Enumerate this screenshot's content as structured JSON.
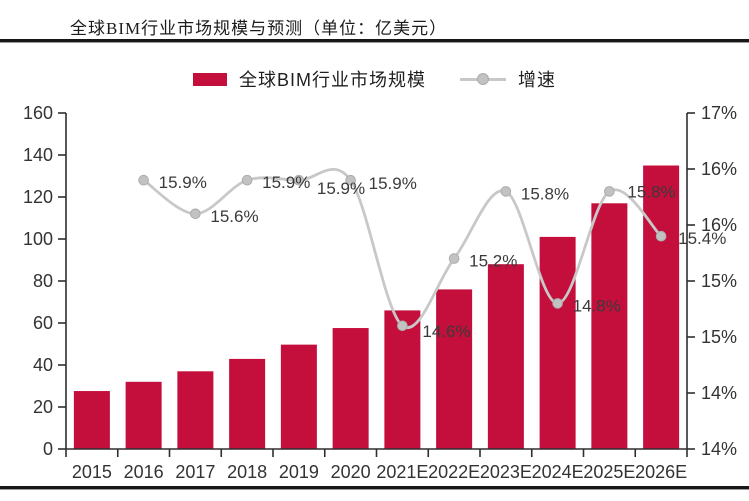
{
  "header": {
    "title": "全球BIM行业市场规模与预测（单位：亿美元）"
  },
  "legend": {
    "bar_label": "全球BIM行业市场规模",
    "line_label": "增速"
  },
  "colors": {
    "bar": "#C40F3C",
    "line": "#C8C8C8",
    "marker_fill": "#C2C2C2",
    "marker_edge": "#ACACAC",
    "axis": "#2f2f2f",
    "tick_text": "#333333",
    "data_label_text": "#3a3a3a",
    "rule": "#171717"
  },
  "chart_data": {
    "type": "combo-bar-line",
    "title": "全球BIM行业市场规模与预测（单位：亿美元）",
    "unit": "亿美元",
    "categories": [
      "2015",
      "2016",
      "2017",
      "2018",
      "2019",
      "2020",
      "2021E",
      "2022E",
      "2023E",
      "2024E",
      "2025E",
      "2026E"
    ],
    "series": [
      {
        "name": "全球BIM行业市场规模",
        "type": "bar",
        "axis": "left",
        "values": [
          27.6,
          32,
          37,
          42.9,
          49.7,
          57.6,
          66,
          76,
          88,
          101,
          117,
          135
        ]
      },
      {
        "name": "增速",
        "type": "line",
        "axis": "right",
        "values": [
          null,
          15.9,
          15.6,
          15.9,
          15.9,
          15.9,
          14.6,
          15.2,
          15.8,
          14.8,
          15.8,
          15.4
        ],
        "data_labels": [
          "",
          "15.9%",
          "15.6%",
          "15.9%",
          "15.9%",
          "15.9%",
          "14.6%",
          "15.2%",
          "15.8%",
          "14.8%",
          "15.8%",
          "15.4%"
        ]
      }
    ],
    "left_axis": {
      "min": 0,
      "max": 160,
      "step": 20,
      "tick_labels_top_to_bottom": [
        "160",
        "140",
        "120",
        "100",
        "80",
        "60",
        "40",
        "20",
        "0"
      ]
    },
    "right_axis": {
      "min": 13.5,
      "max": 16.5,
      "step": 0.5,
      "tick_labels_top_to_bottom": [
        "17%",
        "16%",
        "16%",
        "15%",
        "15%",
        "14%",
        "14%"
      ]
    },
    "grid": false,
    "legend_position": "top",
    "smooth_line": true,
    "label_offsets_default": [
      15,
      8
    ],
    "label_offsets_overrides": {
      "4": [
        18,
        14
      ],
      "5": [
        18,
        9
      ],
      "6": [
        20,
        11
      ],
      "10": [
        18,
        6
      ],
      "11": [
        17,
        8
      ]
    }
  }
}
